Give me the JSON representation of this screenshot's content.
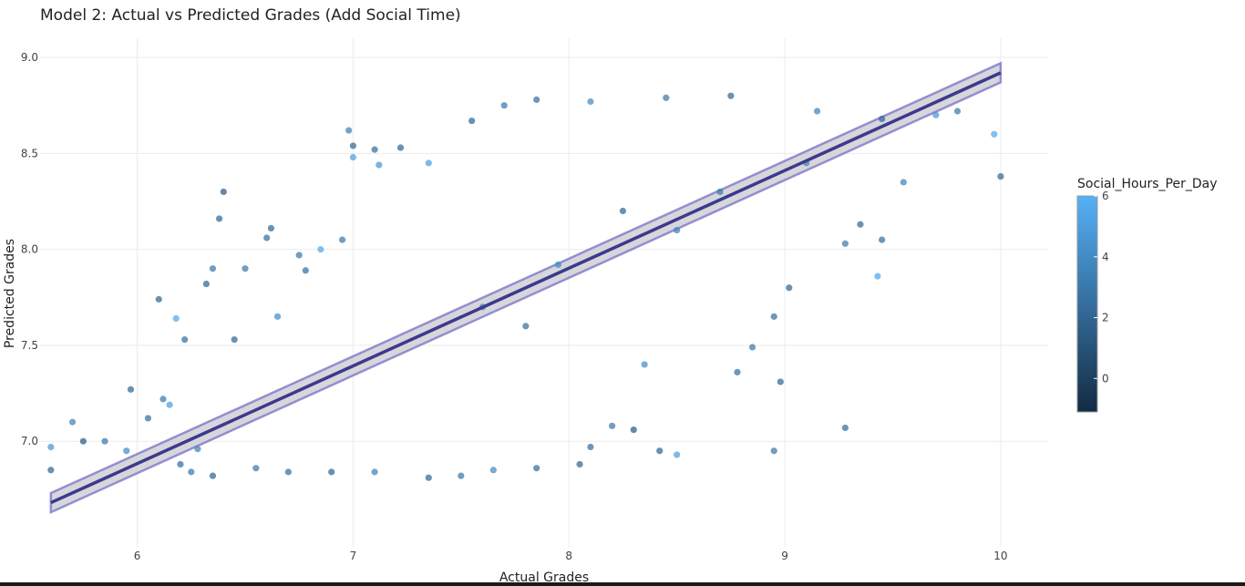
{
  "chart_data": {
    "type": "scatter",
    "title": "Model 2: Actual vs Predicted Grades (Add Social Time)",
    "xlabel": "Actual Grades",
    "ylabel": "Predicted Grades",
    "xlim": [
      5.55,
      10.22
    ],
    "ylim": [
      6.45,
      9.1
    ],
    "x_ticks": [
      6,
      7,
      8,
      9,
      10
    ],
    "y_ticks": [
      7.0,
      7.5,
      8.0,
      8.5,
      9.0
    ],
    "x_tick_labels": [
      "6",
      "7",
      "8",
      "9",
      "10"
    ],
    "y_tick_labels": [
      "7.0",
      "7.5",
      "8.0",
      "8.5",
      "9.0"
    ],
    "grid": true,
    "colorbar": {
      "title": "Social_Hours_Per_Day",
      "range": [
        -1.1,
        6
      ],
      "ticks": [
        0,
        2,
        4,
        6
      ],
      "tick_labels": [
        "0",
        "2",
        "4",
        "6"
      ],
      "color_low": "#132b43",
      "color_high": "#56b1f7",
      "placement": "right"
    },
    "fit_line": {
      "start": [
        5.6,
        6.68
      ],
      "end": [
        10.0,
        8.92
      ],
      "band_halfwidth": 0.05,
      "line_color": "#3a3a8c",
      "band_fill": "#c8c8d0",
      "band_edge_color": "#7b78c8"
    },
    "series": [
      {
        "points": [
          [
            5.6,
            6.97,
            4.5
          ],
          [
            5.6,
            6.85,
            2.0
          ],
          [
            5.7,
            7.1,
            3.5
          ],
          [
            5.75,
            7.0,
            1.5
          ],
          [
            5.85,
            7.0,
            3.0
          ],
          [
            5.95,
            6.95,
            4.0
          ],
          [
            5.97,
            7.27,
            2.0
          ],
          [
            6.05,
            7.12,
            2.5
          ],
          [
            6.1,
            7.74,
            2.0
          ],
          [
            6.12,
            7.22,
            3.0
          ],
          [
            6.15,
            7.19,
            5.0
          ],
          [
            6.18,
            7.64,
            5.5
          ],
          [
            6.22,
            7.53,
            2.5
          ],
          [
            6.28,
            6.96,
            3.5
          ],
          [
            6.32,
            7.82,
            2.0
          ],
          [
            6.35,
            7.9,
            3.0
          ],
          [
            6.38,
            8.16,
            2.0
          ],
          [
            6.4,
            8.3,
            1.5
          ],
          [
            6.45,
            7.53,
            2.0
          ],
          [
            6.5,
            7.9,
            3.0
          ],
          [
            6.6,
            8.06,
            2.5
          ],
          [
            6.62,
            8.11,
            2.0
          ],
          [
            6.65,
            7.65,
            4.0
          ],
          [
            6.75,
            7.97,
            3.0
          ],
          [
            6.78,
            7.89,
            2.5
          ],
          [
            6.85,
            8.0,
            5.5
          ],
          [
            6.95,
            8.05,
            3.0
          ],
          [
            6.98,
            8.62,
            3.5
          ],
          [
            7.0,
            8.54,
            2.0
          ],
          [
            7.0,
            8.48,
            5.0
          ],
          [
            7.1,
            8.52,
            2.5
          ],
          [
            7.12,
            8.44,
            4.5
          ],
          [
            7.22,
            8.53,
            2.0
          ],
          [
            7.35,
            8.45,
            5.0
          ],
          [
            7.55,
            8.67,
            2.0
          ],
          [
            7.7,
            8.75,
            3.0
          ],
          [
            7.85,
            8.78,
            2.5
          ],
          [
            8.1,
            8.77,
            4.0
          ],
          [
            8.45,
            8.79,
            3.0
          ],
          [
            8.75,
            8.8,
            2.0
          ],
          [
            9.15,
            8.72,
            3.5
          ],
          [
            9.45,
            8.68,
            2.0
          ],
          [
            9.7,
            8.7,
            4.5
          ],
          [
            9.8,
            8.72,
            3.0
          ],
          [
            9.97,
            8.6,
            5.5
          ],
          [
            10.0,
            8.38,
            2.0
          ],
          [
            9.55,
            8.35,
            3.5
          ],
          [
            9.45,
            8.05,
            2.5
          ],
          [
            9.43,
            7.86,
            5.5
          ],
          [
            9.35,
            8.13,
            2.0
          ],
          [
            9.28,
            8.03,
            3.0
          ],
          [
            9.02,
            7.8,
            2.0
          ],
          [
            8.95,
            7.65,
            2.5
          ],
          [
            8.85,
            7.49,
            3.0
          ],
          [
            8.78,
            7.36,
            2.5
          ],
          [
            8.98,
            7.31,
            2.0
          ],
          [
            9.28,
            7.07,
            2.5
          ],
          [
            8.95,
            6.95,
            3.0
          ],
          [
            8.5,
            6.93,
            5.0
          ],
          [
            8.42,
            6.95,
            2.0
          ],
          [
            8.3,
            7.06,
            1.5
          ],
          [
            8.2,
            7.08,
            3.0
          ],
          [
            8.1,
            6.97,
            2.5
          ],
          [
            8.05,
            6.88,
            2.0
          ],
          [
            7.85,
            6.86,
            2.5
          ],
          [
            7.65,
            6.85,
            4.0
          ],
          [
            7.5,
            6.82,
            3.0
          ],
          [
            7.35,
            6.81,
            2.0
          ],
          [
            7.1,
            6.84,
            3.5
          ],
          [
            6.9,
            6.84,
            2.0
          ],
          [
            6.7,
            6.84,
            2.5
          ],
          [
            6.55,
            6.86,
            3.0
          ],
          [
            6.35,
            6.82,
            2.0
          ],
          [
            6.25,
            6.84,
            3.0
          ],
          [
            6.2,
            6.88,
            2.5
          ],
          [
            8.5,
            8.1,
            3.5
          ],
          [
            8.35,
            7.4,
            4.0
          ],
          [
            7.8,
            7.6,
            2.5
          ],
          [
            7.6,
            7.7,
            3.5
          ],
          [
            7.95,
            7.92,
            4.0
          ],
          [
            8.25,
            8.2,
            2.0
          ],
          [
            8.7,
            8.3,
            3.0
          ],
          [
            9.1,
            8.45,
            3.5
          ]
        ]
      }
    ]
  }
}
